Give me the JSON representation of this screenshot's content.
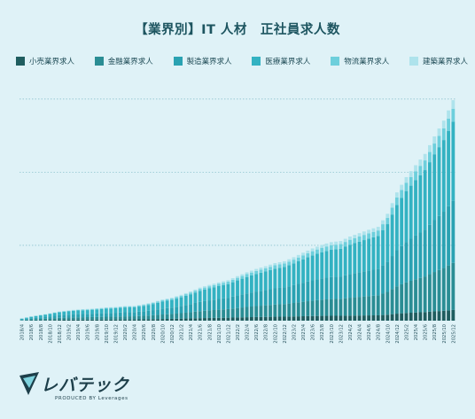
{
  "title": "【業界別】IT 人材　正社員求人数",
  "legend": [
    {
      "label": "小売業界求人",
      "color": "#1f5d5f"
    },
    {
      "label": "金融業界求人",
      "color": "#2a8d94"
    },
    {
      "label": "製造業界求人",
      "color": "#2aa2b2"
    },
    {
      "label": "医療業界求人",
      "color": "#33b2c2"
    },
    {
      "label": "物流業界求人",
      "color": "#6dcfdc"
    },
    {
      "label": "建築業界求人",
      "color": "#aee3ec"
    }
  ],
  "logo": {
    "name": "レバテック",
    "sub": "PRODUCED BY Leverages"
  },
  "chart_data": {
    "type": "bar",
    "stacked": true,
    "title": "【業界別】IT 人材　正社員求人数",
    "xlabel": "",
    "ylabel": "",
    "x_tick_labels": [
      "2018/4",
      "2018/6",
      "2018/8",
      "2018/10",
      "2018/12",
      "2019/2",
      "2019/4",
      "2019/6",
      "2019/8",
      "2019/10",
      "2019/12",
      "2020/2",
      "2020/4",
      "2020/6",
      "2020/8",
      "2020/10",
      "2020/12",
      "2021/2",
      "2021/4",
      "2021/6",
      "2021/8",
      "2021/10",
      "2021/12",
      "2022/2",
      "2022/4",
      "2022/6",
      "2022/8",
      "2022/10",
      "2022/12",
      "2023/2",
      "2023/4",
      "2023/6",
      "2023/8",
      "2023/10",
      "2023/12",
      "2024/2",
      "2024/4",
      "2024/6",
      "2024/8",
      "2024/10",
      "2024/12",
      "2025/2",
      "2025/4",
      "2025/6",
      "2025/8",
      "2025/10",
      "2025/12"
    ],
    "series_order": [
      "小売業界求人",
      "金融業界求人",
      "製造業界求人",
      "医療業界求人",
      "物流業界求人",
      "建築業界求人"
    ],
    "ylim": [
      0,
      100
    ],
    "grid": "horizontal-dotted",
    "note": "Values are relative heights (0-100 scale); the chart prints no y-axis values. One bar per month.",
    "totals_by_tick": [
      1.0,
      1.9,
      2.6,
      3.3,
      4.1,
      4.6,
      5.0,
      5.2,
      5.5,
      5.9,
      6.1,
      6.5,
      6.6,
      7.3,
      8.2,
      9.4,
      10.2,
      11.5,
      13.0,
      14.7,
      15.9,
      17.0,
      18.0,
      19.8,
      21.5,
      23.0,
      24.2,
      25.6,
      26.4,
      28.2,
      30.2,
      32.1,
      33.7,
      34.9,
      35.4,
      37.4,
      38.9,
      40.4,
      41.7,
      47.5,
      57.0,
      63.8,
      69.1,
      74.1,
      81.9,
      88.9,
      98.0
    ],
    "series_shares": [
      0.06,
      0.22,
      0.29,
      0.33,
      0.06,
      0.04
    ]
  }
}
